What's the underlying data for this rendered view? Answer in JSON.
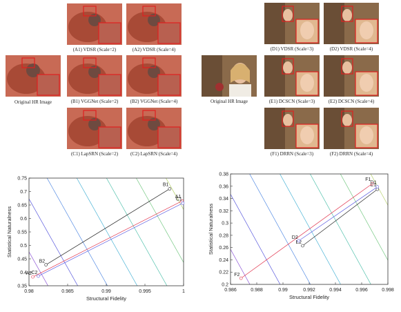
{
  "left_panel": {
    "original_caption": "Original HR Image",
    "thumbs": [
      {
        "id": "A1",
        "caption": "(A1) VDSR (Scale=2)"
      },
      {
        "id": "A2",
        "caption": "(A2) VDSR (Scale=4)"
      },
      {
        "id": "B1",
        "caption": "(B1) VGGNet (Scale=2)"
      },
      {
        "id": "B2",
        "caption": "(B2) VGGNet (Scale=4)"
      },
      {
        "id": "C1",
        "caption": "(C1) LapSRN (Scale=2)"
      },
      {
        "id": "C2",
        "caption": "(C2) LapSRN (Scale=4)"
      }
    ]
  },
  "right_panel": {
    "original_caption": "Original HR Image",
    "thumbs": [
      {
        "id": "D1",
        "caption": "(D1) VDSR (Scale=3)"
      },
      {
        "id": "D2",
        "caption": "(D2) VDSR (Scale=4)"
      },
      {
        "id": "E1",
        "caption": "(E1) DCSCN (Scale=3)"
      },
      {
        "id": "E2",
        "caption": "(E2) DCSCN (Scale=4)"
      },
      {
        "id": "F1",
        "caption": "(F1) DRRN (Scale=3)"
      },
      {
        "id": "F2",
        "caption": "(F2) DRRN (Scale=4)"
      }
    ]
  },
  "chart_data": [
    {
      "type": "line",
      "xlabel": "Structural Fidelity",
      "ylabel": "Statistical Naturalness",
      "xlim": [
        0.98,
        1.0
      ],
      "ylim": [
        0.35,
        0.75
      ],
      "xticks": [
        "0.98",
        "0.985",
        "0.99",
        "0.995",
        "1"
      ],
      "yticks": [
        "0.35",
        "0.4",
        "0.45",
        "0.5",
        "0.55",
        "0.6",
        "0.65",
        "0.7",
        "0.75"
      ],
      "series": [
        {
          "color": "#222222",
          "points": [
            {
              "label": "B1",
              "x": 0.9982,
              "y": 0.71
            },
            {
              "label": "B2",
              "x": 0.9822,
              "y": 0.428
            }
          ]
        },
        {
          "color": "#e0304a",
          "points": [
            {
              "label": "A1",
              "x": 0.9998,
              "y": 0.665
            },
            {
              "label": "A2",
              "x": 0.9805,
              "y": 0.383
            }
          ]
        },
        {
          "color": "#5a5ae0",
          "points": [
            {
              "label": "C1",
              "x": 0.9999,
              "y": 0.657
            },
            {
              "label": "C2",
              "x": 0.9812,
              "y": 0.386
            }
          ]
        }
      ]
    },
    {
      "type": "line",
      "xlabel": "Structural Fidelity",
      "ylabel": "Statistical Naturalness",
      "xlim": [
        0.986,
        0.998
      ],
      "ylim": [
        0.2,
        0.38
      ],
      "xticks": [
        "0.986",
        "0.988",
        "0.99",
        "0.992",
        "0.994",
        "0.996",
        "0.998"
      ],
      "yticks": [
        "0.2",
        "0.22",
        "0.24",
        "0.26",
        "0.28",
        "0.3",
        "0.32",
        "0.34",
        "0.36",
        "0.38"
      ],
      "series": [
        {
          "color": "#222222",
          "points": [
            {
              "label": "E1",
              "x": 0.9972,
              "y": 0.355
            },
            {
              "label": "E2",
              "x": 0.9915,
              "y": 0.263
            }
          ]
        },
        {
          "color": "#e0304a",
          "points": [
            {
              "label": "F1",
              "x": 0.9968,
              "y": 0.364
            },
            {
              "label": "F2",
              "x": 0.9868,
              "y": 0.21
            }
          ]
        },
        {
          "color": "#5a5ae0",
          "points": [
            {
              "label": "D1",
              "x": 0.9972,
              "y": 0.359
            },
            {
              "label": "D2",
              "x": 0.9912,
              "y": 0.271
            }
          ]
        }
      ]
    }
  ]
}
